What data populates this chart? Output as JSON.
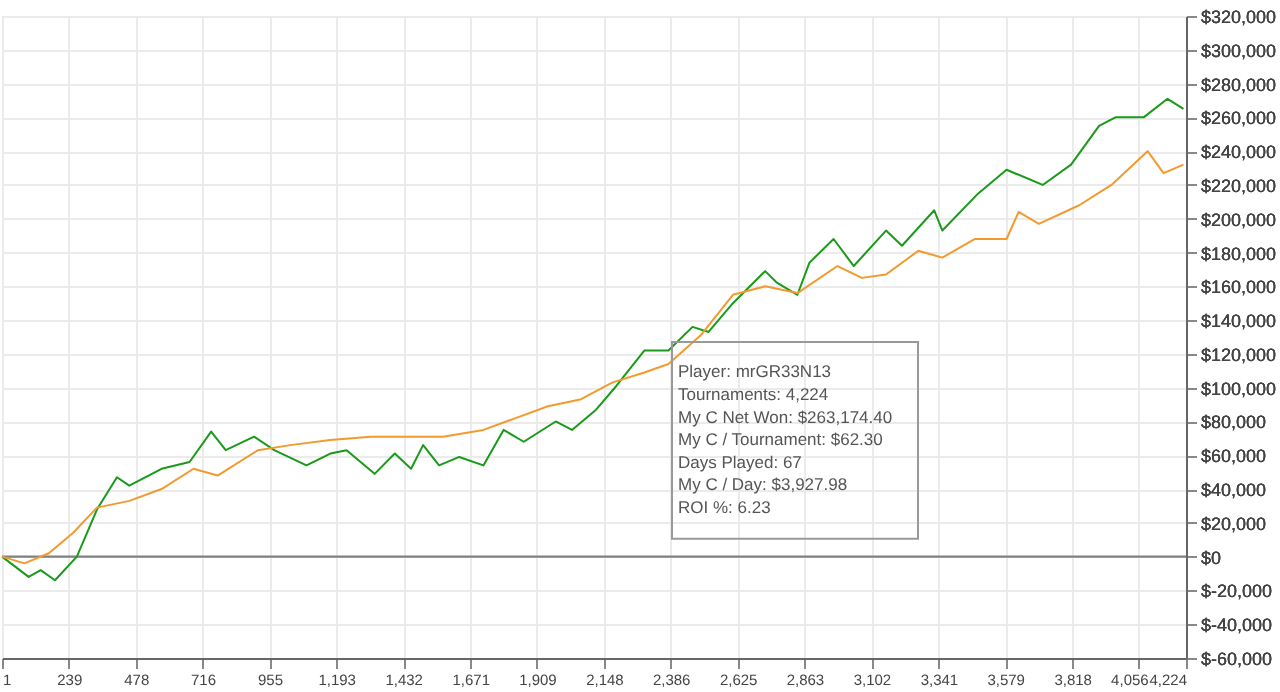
{
  "chart_data": {
    "type": "line",
    "xlim": [
      1,
      4224
    ],
    "xticks": [
      1,
      239,
      478,
      716,
      955,
      {
        "value": 1193,
        "label": "1,193"
      },
      {
        "value": 1432,
        "label": "1,432"
      },
      {
        "value": 1671,
        "label": "1,671"
      },
      {
        "value": 1909,
        "label": "1,909"
      },
      {
        "value": 2148,
        "label": "2,148"
      },
      {
        "value": 2386,
        "label": "2,386"
      },
      {
        "value": 2625,
        "label": "2,625"
      },
      {
        "value": 2863,
        "label": "2,863"
      },
      {
        "value": 3102,
        "label": "3,102"
      },
      {
        "value": 3341,
        "label": "3,341"
      },
      {
        "value": 3579,
        "label": "3,579"
      },
      {
        "value": 3818,
        "label": "3,818"
      },
      {
        "value": 4056,
        "label": "4,056"
      },
      {
        "value": 4224,
        "label": "4,224"
      }
    ],
    "ylim": [
      -60000,
      320000
    ],
    "yticks": [
      {
        "value": -60000,
        "label": "$-60,000"
      },
      {
        "value": -40000,
        "label": "$-40,000"
      },
      {
        "value": -20000,
        "label": "$-20,000"
      },
      {
        "value": 0,
        "label": "$0"
      },
      {
        "value": 20000,
        "label": "$20,000"
      },
      {
        "value": 40000,
        "label": "$40,000"
      },
      {
        "value": 60000,
        "label": "$60,000"
      },
      {
        "value": 80000,
        "label": "$80,000"
      },
      {
        "value": 100000,
        "label": "$100,000"
      },
      {
        "value": 120000,
        "label": "$120,000"
      },
      {
        "value": 140000,
        "label": "$140,000"
      },
      {
        "value": 160000,
        "label": "$160,000"
      },
      {
        "value": 180000,
        "label": "$180,000"
      },
      {
        "value": 200000,
        "label": "$200,000"
      },
      {
        "value": 220000,
        "label": "$220,000"
      },
      {
        "value": 240000,
        "label": "$240,000"
      },
      {
        "value": 260000,
        "label": "$260,000"
      },
      {
        "value": 280000,
        "label": "$280,000"
      },
      {
        "value": 300000,
        "label": "$300,000"
      },
      {
        "value": 320000,
        "label": "$320,000"
      }
    ],
    "grid": true,
    "marker": "none",
    "line_style": "solid",
    "ref_lines": [
      {
        "axis": "y",
        "value": 0,
        "color": "#808080"
      }
    ],
    "series": [
      {
        "color": "#1a9a1a",
        "x": [
          1,
          96,
          139,
          190,
          268,
          340,
          411,
          455,
          570,
          670,
          747,
          799,
          900,
          972,
          1087,
          1172,
          1230,
          1330,
          1402,
          1460,
          1503,
          1560,
          1632,
          1718,
          1790,
          1862,
          1976,
          2034,
          2120,
          2192,
          2292,
          2378,
          2464,
          2521,
          2608,
          2723,
          2766,
          2838,
          2881,
          2967,
          3039,
          3154,
          3211,
          3326,
          3355,
          3483,
          3584,
          3713,
          3814,
          3914,
          3972,
          4073,
          4158,
          4215
        ],
        "values": [
          0,
          -12000,
          -8000,
          -14000,
          0,
          28000,
          47000,
          42000,
          52000,
          56000,
          74000,
          63000,
          71000,
          63000,
          54000,
          61000,
          63000,
          49000,
          61000,
          52000,
          66000,
          54000,
          59000,
          54000,
          75000,
          68000,
          80000,
          75000,
          87000,
          101000,
          122000,
          122000,
          136000,
          133000,
          150000,
          169000,
          162000,
          155000,
          174000,
          188000,
          172000,
          193000,
          184000,
          205000,
          193000,
          215000,
          229000,
          220000,
          232000,
          255000,
          260000,
          260000,
          271000,
          265000
        ]
      },
      {
        "color": "#f39a2e",
        "x": [
          1,
          81,
          168,
          254,
          340,
          455,
          570,
          684,
          770,
          914,
          1029,
          1172,
          1316,
          1431,
          1574,
          1718,
          1833,
          1948,
          2063,
          2177,
          2292,
          2378,
          2493,
          2608,
          2723,
          2838,
          2981,
          3068,
          3154,
          3269,
          3355,
          3470,
          3584,
          3627,
          3699,
          3843,
          3958,
          4087,
          4144,
          4215
        ],
        "values": [
          0,
          -4000,
          2000,
          14000,
          29000,
          33000,
          40000,
          52000,
          48000,
          63000,
          66000,
          69000,
          71000,
          71000,
          71000,
          75000,
          82000,
          89000,
          93000,
          103000,
          109000,
          114000,
          131000,
          155000,
          160000,
          156000,
          172000,
          165000,
          167000,
          181000,
          177000,
          188000,
          188000,
          204000,
          197000,
          208000,
          220000,
          240000,
          227000,
          232000
        ]
      }
    ],
    "annotations": [
      "Player: mrGR33N13",
      "Tournaments: 4,224",
      "My C Net Won: $263,174.40",
      "My C / Tournament: $62.30",
      "Days Played: 67",
      "My C / Day: $3,927.98",
      "ROI %: 6.23"
    ]
  }
}
